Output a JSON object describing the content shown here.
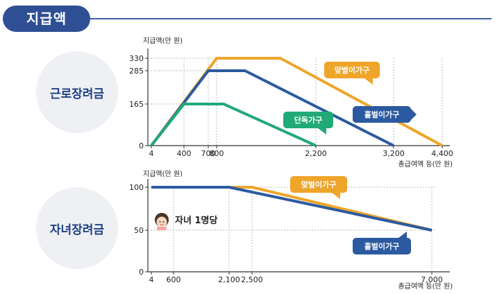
{
  "header": {
    "title": "지급액"
  },
  "colors": {
    "dual": "#eea52a",
    "single": "#2c5aa0",
    "solo": "#22a978",
    "grid": "#bbbbbb",
    "axis": "#333333",
    "accent": "#2f4f95"
  },
  "chart_data": [
    {
      "id": "earned_income",
      "type": "line",
      "name": "근로장려금",
      "ylabel": "지급액(만 원)",
      "xlabel": "총급여액 등(만 원)",
      "xticks": [
        {
          "v": 4,
          "label": "4"
        },
        {
          "v": 400,
          "label": "400"
        },
        {
          "v": 700,
          "label": "700"
        },
        {
          "v": 800,
          "label": "800"
        },
        {
          "v": 2200,
          "label": "2,200"
        },
        {
          "v": 3200,
          "label": "3,200"
        },
        {
          "v": 4400,
          "label": "4,400"
        }
      ],
      "yticks": [
        {
          "v": 0,
          "label": "0"
        },
        {
          "v": 165,
          "label": "165"
        },
        {
          "v": 285,
          "label": "285"
        },
        {
          "v": 330,
          "label": "330"
        }
      ],
      "series": [
        {
          "name": "맞벌이가구",
          "color": "#eea52a",
          "points": [
            [
              4,
              0
            ],
            [
              800,
              330
            ],
            [
              1700,
              330
            ],
            [
              4400,
              0
            ]
          ]
        },
        {
          "name": "홑벌이가구",
          "color": "#2c5aa0",
          "points": [
            [
              4,
              0
            ],
            [
              700,
              285
            ],
            [
              1200,
              285
            ],
            [
              3200,
              0
            ]
          ]
        },
        {
          "name": "단독가구",
          "color": "#22a978",
          "points": [
            [
              4,
              0
            ],
            [
              400,
              165
            ],
            [
              900,
              165
            ],
            [
              2200,
              0
            ]
          ]
        }
      ]
    },
    {
      "id": "child",
      "type": "line",
      "name": "자녀장려금",
      "ylabel": "지급액(만 원)",
      "xlabel": "총급여액 등(만 원)",
      "annotation": "자녀 1명당",
      "xticks": [
        {
          "v": 4,
          "label": "4"
        },
        {
          "v": 600,
          "label": "600"
        },
        {
          "v": 2100,
          "label": "2,100"
        },
        {
          "v": 2500,
          "label": "2,500"
        },
        {
          "v": 7000,
          "label": "7,000"
        }
      ],
      "yticks": [
        {
          "v": 0,
          "label": "0"
        },
        {
          "v": 50,
          "label": "50"
        },
        {
          "v": 100,
          "label": "100"
        }
      ],
      "series": [
        {
          "name": "맞벌이가구",
          "color": "#eea52a",
          "points": [
            [
              600,
              100
            ],
            [
              2500,
              100
            ],
            [
              7000,
              50
            ]
          ]
        },
        {
          "name": "홑벌이가구",
          "color": "#2c5aa0",
          "points": [
            [
              4,
              100
            ],
            [
              2100,
              100
            ],
            [
              7000,
              50
            ]
          ]
        }
      ]
    }
  ]
}
